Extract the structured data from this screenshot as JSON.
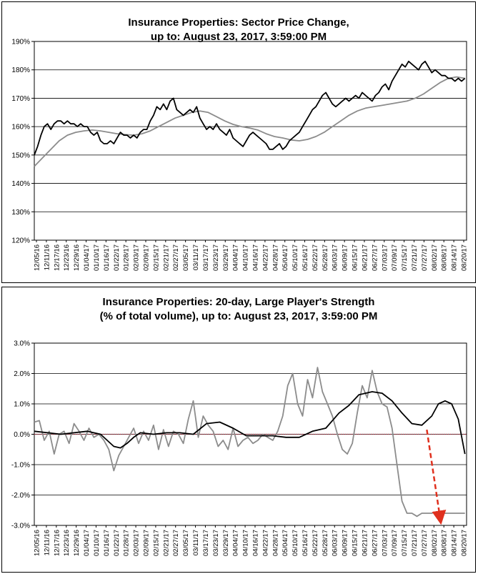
{
  "charts": {
    "price": {
      "title_line1": "Insurance Properties:  Sector Price Change,",
      "title_line2": "up to: August 23, 2017, 3:59:00 PM"
    },
    "strength": {
      "title_line1": "Insurance Properties: 20-day, Large Player's Strength",
      "title_line2": "(% of total volume), up to: August 23, 2017, 3:59:00 PM"
    }
  },
  "chart_data": [
    {
      "type": "line",
      "title": "Insurance Properties:  Sector Price Change, up to: August 23, 2017, 3:59:00 PM",
      "ylim": [
        120,
        190
      ],
      "y_ticks": [
        "190%",
        "180%",
        "170%",
        "160%",
        "150%",
        "140%",
        "130%",
        "120%"
      ],
      "y_tick_values": [
        190,
        180,
        170,
        160,
        150,
        140,
        130,
        120
      ],
      "x_ticks": [
        "12/05/16",
        "12/11/16",
        "12/17/16",
        "12/23/16",
        "12/29/16",
        "01/04/17",
        "01/10/17",
        "01/16/17",
        "01/22/17",
        "01/28/17",
        "02/03/17",
        "02/09/17",
        "02/15/17",
        "02/21/17",
        "02/27/17",
        "03/05/17",
        "03/11/17",
        "03/17/17",
        "03/23/17",
        "03/29/17",
        "04/04/17",
        "04/10/17",
        "04/16/17",
        "04/22/17",
        "04/28/17",
        "05/04/17",
        "05/10/17",
        "05/16/17",
        "05/22/17",
        "05/28/17",
        "06/03/17",
        "06/09/17",
        "06/15/17",
        "06/21/17",
        "06/27/17",
        "07/03/17",
        "07/09/17",
        "07/15/17",
        "07/21/17",
        "07/27/17",
        "08/02/17",
        "08/08/17",
        "08/14/17",
        "08/20/17"
      ],
      "grid": true,
      "x_range": [
        0,
        261
      ],
      "series": [
        {
          "color": "#000000",
          "x": [
            0,
            2,
            4,
            6,
            8,
            10,
            12,
            14,
            16,
            18,
            20,
            22,
            24,
            26,
            28,
            30,
            32,
            34,
            36,
            38,
            40,
            42,
            44,
            46,
            48,
            50,
            52,
            54,
            56,
            58,
            60,
            62,
            64,
            66,
            68,
            70,
            72,
            74,
            76,
            78,
            80,
            82,
            84,
            86,
            88,
            90,
            92,
            94,
            96,
            98,
            100,
            102,
            104,
            106,
            108,
            110,
            112,
            114,
            116,
            118,
            120,
            122,
            124,
            126,
            128,
            130,
            132,
            134,
            136,
            138,
            140,
            142,
            144,
            146,
            148,
            150,
            152,
            154,
            156,
            158,
            160,
            162,
            164,
            166,
            168,
            170,
            172,
            174,
            176,
            178,
            180,
            182,
            184,
            186,
            188,
            190,
            192,
            194,
            196,
            198,
            200,
            202,
            204,
            206,
            208,
            210,
            212,
            214,
            216,
            218,
            220,
            222,
            224,
            226,
            228,
            230,
            232,
            234,
            236,
            238,
            240,
            242,
            244,
            246,
            248,
            250,
            252,
            254,
            256,
            258,
            260
          ],
          "values": [
            150,
            153,
            157,
            160,
            161,
            159,
            161,
            162,
            162,
            161,
            162,
            161,
            161,
            160,
            161,
            160,
            160,
            158,
            157,
            158,
            155,
            154,
            154,
            155,
            154,
            156,
            158,
            157,
            157,
            156,
            157,
            156,
            158,
            159,
            159,
            162,
            164,
            167,
            166,
            168,
            166,
            169,
            170,
            166,
            165,
            164,
            165,
            166,
            165,
            167,
            163,
            161,
            159,
            160,
            159,
            161,
            159,
            158,
            157,
            159,
            156,
            155,
            154,
            153,
            155,
            157,
            158,
            157,
            156,
            155,
            154,
            152,
            152,
            153,
            154,
            152,
            153,
            155,
            156,
            157,
            158,
            160,
            162,
            164,
            166,
            167,
            169,
            171,
            172,
            170,
            168,
            167,
            168,
            169,
            170,
            169,
            170,
            171,
            170,
            172,
            171,
            170,
            169,
            171,
            172,
            174,
            175,
            173,
            176,
            178,
            180,
            182,
            181,
            183,
            182,
            181,
            180,
            182,
            183,
            181,
            179,
            180,
            179,
            178,
            178,
            177,
            177,
            176,
            177,
            176,
            177
          ],
          "values_note": ""
        },
        {
          "color": "#8c8c8c",
          "x": [
            0,
            5,
            10,
            15,
            20,
            25,
            30,
            35,
            40,
            45,
            50,
            55,
            60,
            65,
            70,
            75,
            80,
            85,
            90,
            95,
            100,
            105,
            110,
            115,
            120,
            125,
            130,
            135,
            140,
            145,
            150,
            155,
            160,
            165,
            170,
            175,
            180,
            185,
            190,
            195,
            200,
            205,
            210,
            215,
            220,
            225,
            230,
            235,
            240,
            245,
            250,
            255,
            260
          ],
          "values": [
            146,
            149,
            152,
            155,
            157,
            158,
            158.5,
            158.8,
            158.5,
            158,
            157.5,
            157.2,
            157,
            157.5,
            158.5,
            160,
            161.5,
            163,
            164,
            165,
            165.5,
            165,
            163.5,
            162,
            160.8,
            160,
            159.5,
            158.8,
            157.5,
            156.5,
            156,
            155.3,
            155,
            155.5,
            156.5,
            158,
            160,
            162,
            164,
            165.5,
            166.5,
            167,
            167.5,
            168,
            168.5,
            169,
            170,
            171.5,
            173.5,
            175.5,
            177,
            177.5,
            177
          ]
        }
      ]
    },
    {
      "type": "line",
      "title": "Insurance Properties: 20-day, Large Player's Strength (% of total volume), up to: August 23, 2017, 3:59:00 PM",
      "ylim": [
        -3.0,
        3.0
      ],
      "y_ticks": [
        "3.0%",
        "2.0%",
        "1.0%",
        "0.0%",
        "-1.0%",
        "-2.0%",
        "-3.0%"
      ],
      "y_tick_values": [
        3,
        2,
        1,
        0,
        -1,
        -2,
        -3
      ],
      "x_ticks": [
        "12/05/16",
        "12/11/16",
        "12/17/16",
        "12/23/16",
        "12/29/16",
        "01/04/17",
        "01/10/17",
        "01/16/17",
        "01/22/17",
        "01/28/17",
        "02/03/17",
        "02/09/17",
        "02/15/17",
        "02/21/17",
        "02/27/17",
        "03/05/17",
        "03/11/17",
        "03/17/17",
        "03/23/17",
        "03/29/17",
        "04/04/17",
        "04/10/17",
        "04/16/17",
        "04/22/17",
        "04/28/17",
        "05/04/17",
        "05/10/17",
        "05/16/17",
        "05/22/17",
        "05/28/17",
        "06/03/17",
        "06/09/17",
        "06/15/17",
        "06/21/17",
        "06/27/17",
        "07/03/17",
        "07/09/17",
        "07/15/17",
        "07/21/17",
        "07/27/17",
        "08/02/17",
        "08/08/17",
        "08/14/17",
        "08/20/17"
      ],
      "grid": true,
      "reference_line": {
        "value": 0,
        "color": "#b03040"
      },
      "x_range": [
        0,
        261
      ],
      "series": [
        {
          "color": "#000000",
          "x": [
            0,
            8,
            16,
            24,
            32,
            40,
            48,
            52,
            56,
            60,
            64,
            72,
            80,
            88,
            96,
            104,
            112,
            120,
            128,
            136,
            144,
            152,
            160,
            168,
            176,
            184,
            190,
            196,
            204,
            210,
            216,
            222,
            228,
            234,
            240,
            244,
            248,
            252,
            256,
            260
          ],
          "values": [
            0.1,
            0.05,
            0.0,
            0.05,
            0.1,
            0.0,
            -0.4,
            -0.45,
            -0.3,
            -0.1,
            0.05,
            0.0,
            0.05,
            0.05,
            0.0,
            0.35,
            0.4,
            0.2,
            -0.05,
            -0.05,
            -0.05,
            -0.1,
            -0.1,
            0.1,
            0.2,
            0.7,
            0.95,
            1.3,
            1.4,
            1.35,
            1.1,
            0.7,
            0.35,
            0.3,
            0.6,
            1.0,
            1.1,
            1.0,
            0.5,
            -0.65
          ]
        },
        {
          "color": "#8c8c8c",
          "x": [
            0,
            3,
            6,
            9,
            12,
            15,
            18,
            21,
            24,
            27,
            30,
            33,
            36,
            39,
            42,
            45,
            48,
            51,
            54,
            57,
            60,
            63,
            66,
            69,
            72,
            75,
            78,
            81,
            84,
            87,
            90,
            93,
            96,
            99,
            102,
            105,
            108,
            111,
            114,
            117,
            120,
            123,
            126,
            129,
            132,
            135,
            138,
            141,
            144,
            147,
            150,
            153,
            156,
            159,
            162,
            165,
            168,
            171,
            174,
            177,
            180,
            183,
            186,
            189,
            192,
            195,
            198,
            201,
            204,
            207,
            210,
            213,
            216,
            219,
            222,
            225,
            228,
            231,
            234,
            237,
            240,
            243,
            246,
            249,
            252,
            255,
            258,
            260
          ],
          "values": [
            0.4,
            0.45,
            -0.2,
            0.1,
            -0.65,
            0.0,
            0.1,
            -0.3,
            0.35,
            0.1,
            -0.2,
            0.2,
            -0.1,
            0.0,
            -0.2,
            -0.5,
            -1.2,
            -0.7,
            -0.4,
            -0.1,
            0.2,
            -0.3,
            0.1,
            -0.2,
            0.3,
            -0.5,
            0.15,
            -0.4,
            0.1,
            0.0,
            -0.3,
            0.5,
            1.1,
            -0.1,
            0.6,
            0.3,
            0.1,
            -0.4,
            -0.2,
            -0.5,
            0.2,
            -0.4,
            -0.2,
            -0.1,
            -0.3,
            -0.2,
            0.0,
            -0.1,
            -0.2,
            0.1,
            0.6,
            1.6,
            2.0,
            1.0,
            0.6,
            1.8,
            1.2,
            2.2,
            1.4,
            1.0,
            0.6,
            0.0,
            -0.5,
            -0.65,
            -0.3,
            0.7,
            1.6,
            1.2,
            2.1,
            1.4,
            1.0,
            0.9,
            0.2,
            -1.0,
            -2.2,
            -2.6,
            -2.6,
            -2.7,
            -2.6,
            -2.6,
            -2.6,
            -2.55,
            -2.6,
            -2.6,
            -2.6,
            -2.6,
            -2.6,
            -2.6
          ]
        }
      ],
      "annotation": {
        "type": "arrow",
        "style": "dashed",
        "color": "#e0301e",
        "from": [
          237,
          0.15
        ],
        "to": [
          245,
          -2.75
        ]
      }
    }
  ]
}
